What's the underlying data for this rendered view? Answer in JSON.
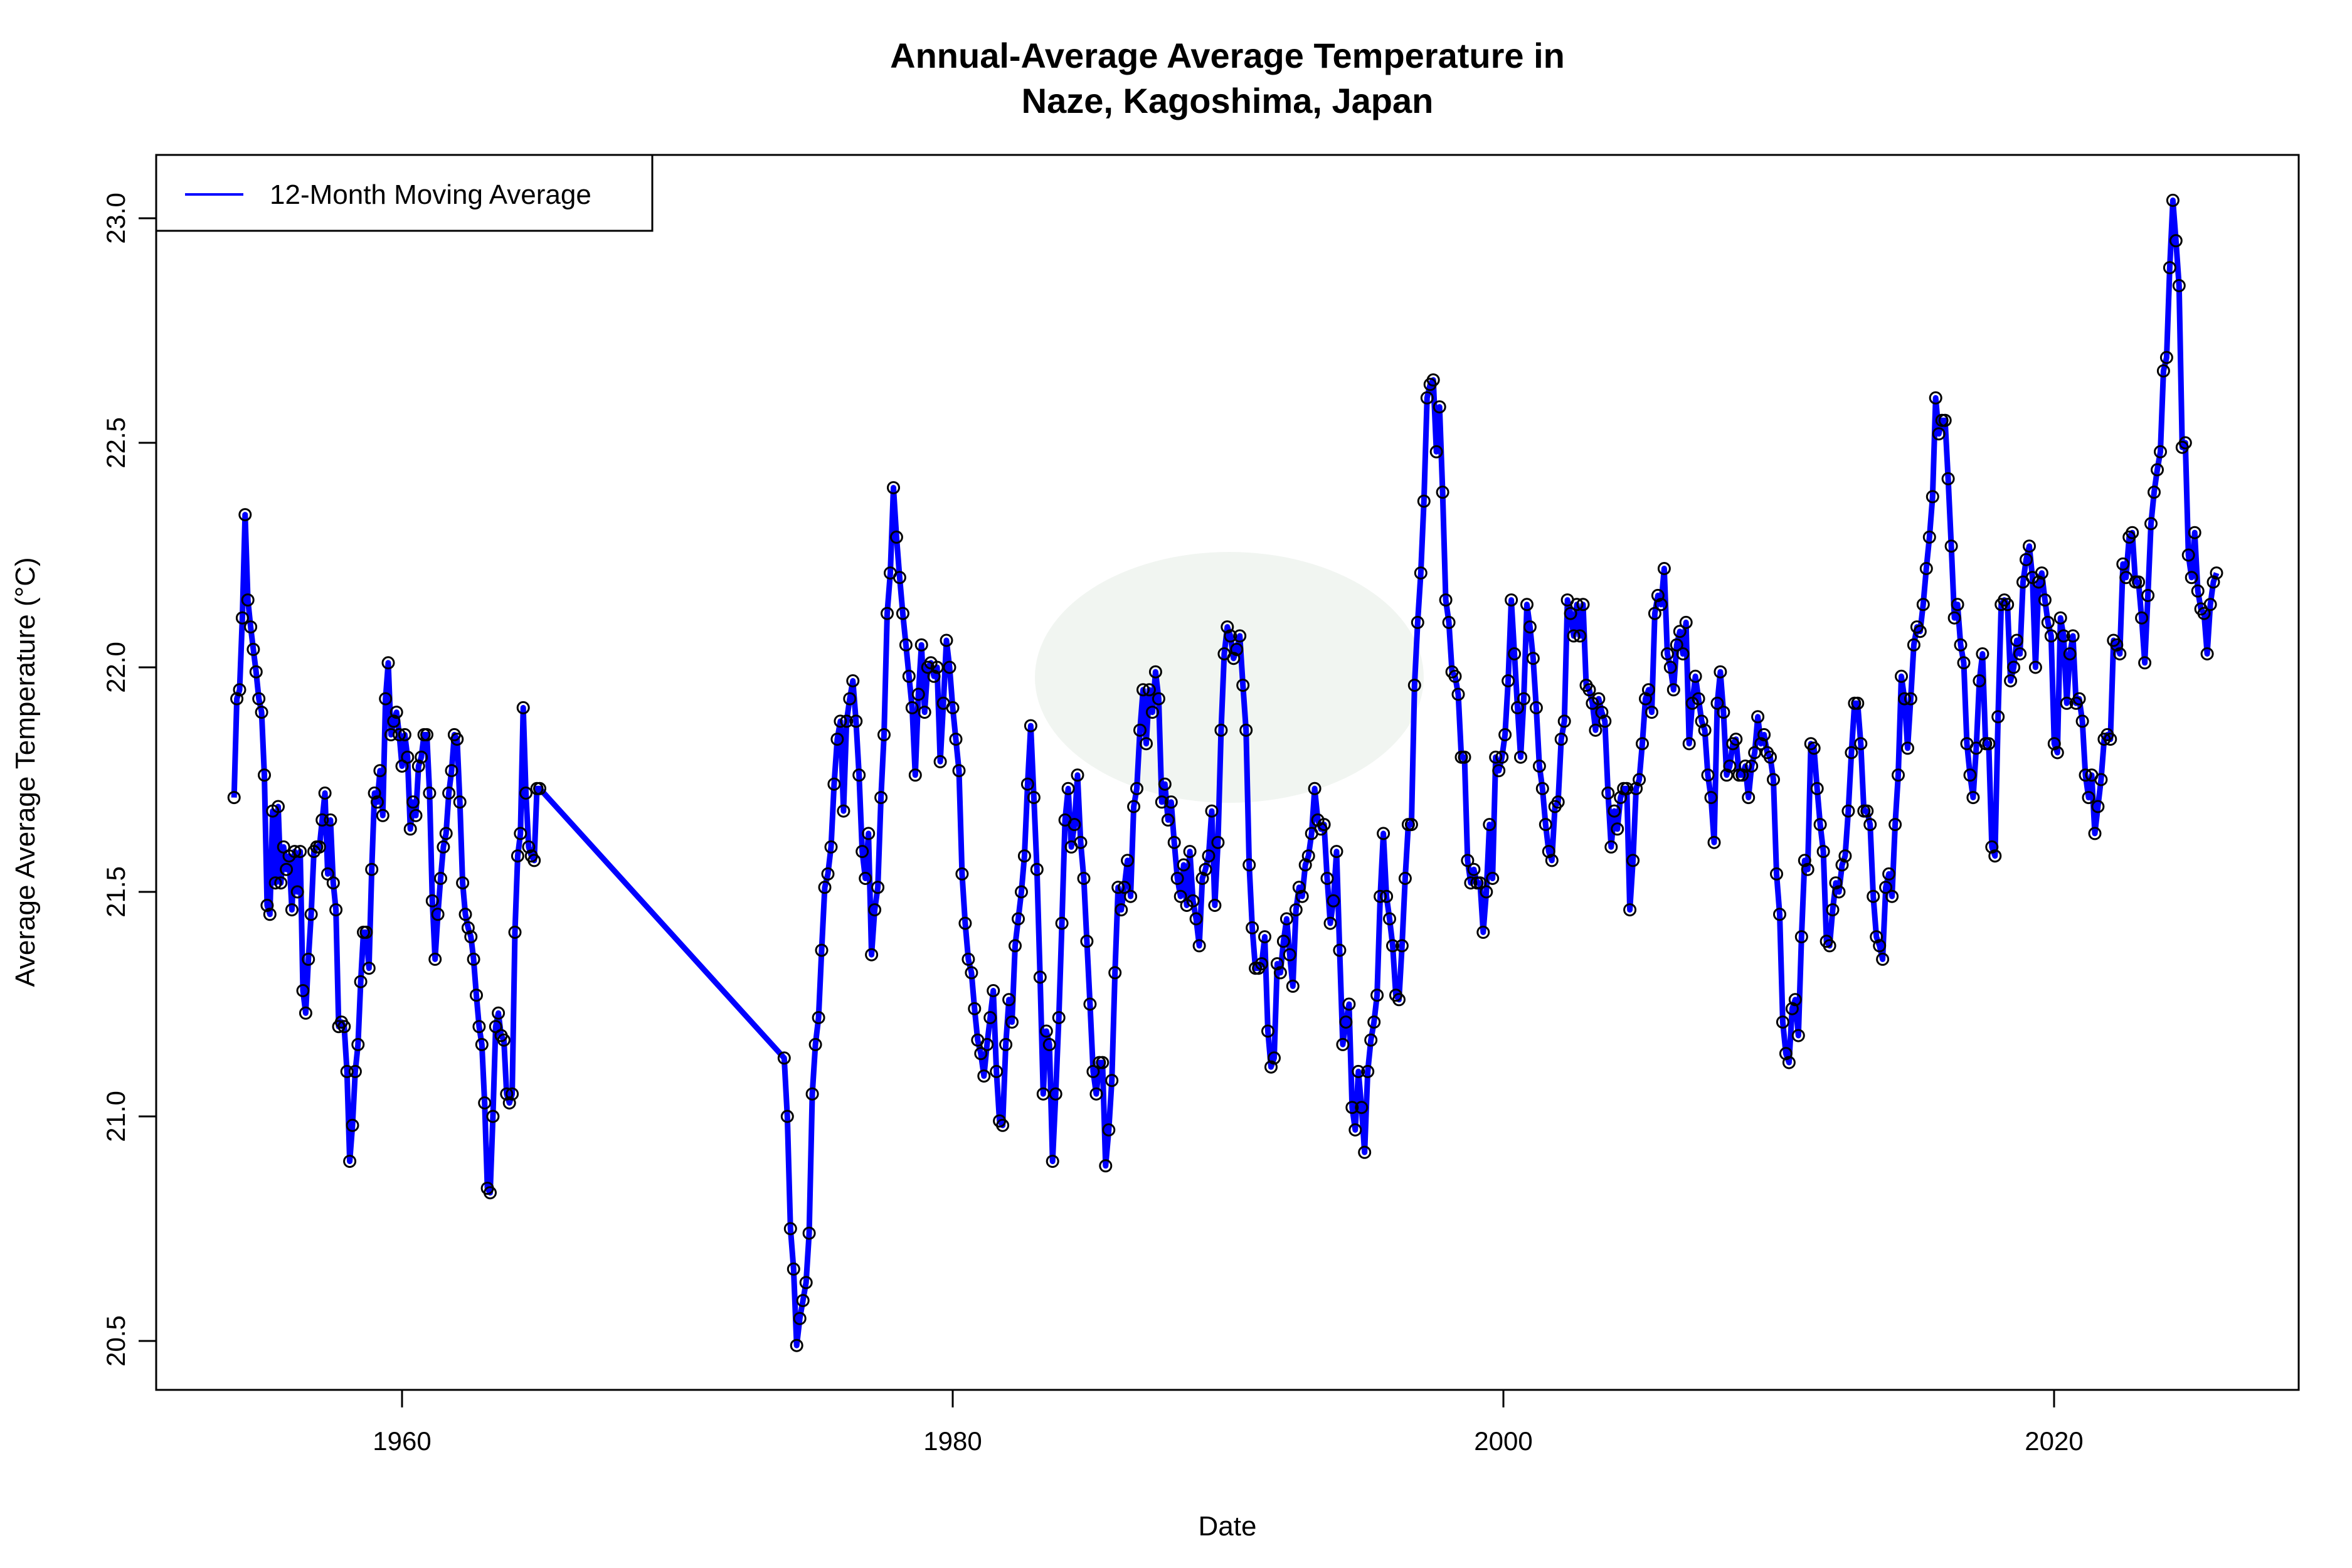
{
  "chart_data": {
    "type": "line",
    "title": [
      "Annual-Average Average Temperature in",
      "Naze, Kagoshima, Japan"
    ],
    "xlabel": "Date",
    "ylabel": "Average Average Temperature (°C)",
    "xlim": [
      1951,
      2028.5
    ],
    "ylim": [
      20.45,
      23.15
    ],
    "xticks": [
      1960,
      1980,
      2000,
      2020
    ],
    "yticks": [
      20.5,
      21.0,
      21.5,
      22.0,
      22.5,
      23.0
    ],
    "ytick_labels": [
      "20.5",
      "21.0",
      "21.5",
      "22.0",
      "22.5",
      "23.0"
    ],
    "grid": false,
    "legend": {
      "placement": "top-left",
      "entries": [
        {
          "label": "12-Month Moving Average",
          "color": "#0000ff"
        }
      ]
    },
    "colors": {
      "line": "#0000ff",
      "points": "#000000"
    },
    "series": [
      {
        "name": "12-Month Moving Average",
        "segments": [
          {
            "x_start": 1953.9,
            "x_end": 1965.0,
            "values": [
              21.71,
              21.93,
              21.95,
              22.11,
              22.34,
              22.15,
              22.09,
              22.04,
              21.99,
              21.93,
              21.9,
              21.76,
              21.47,
              21.45,
              21.68,
              21.52,
              21.69,
              21.52,
              21.6,
              21.55,
              21.58,
              21.46,
              21.59,
              21.5,
              21.59,
              21.28,
              21.23,
              21.35,
              21.45,
              21.59,
              21.6,
              21.6,
              21.66,
              21.72,
              21.54,
              21.66,
              21.52,
              21.46,
              21.2,
              21.21,
              21.2,
              21.1,
              20.9,
              20.98,
              21.1,
              21.16,
              21.3,
              21.41,
              21.41,
              21.33,
              21.55,
              21.72,
              21.7,
              21.77,
              21.67,
              21.93,
              22.01,
              21.85,
              21.88,
              21.9,
              21.85,
              21.78,
              21.85,
              21.8,
              21.64,
              21.7,
              21.67,
              21.78,
              21.8,
              21.85,
              21.85,
              21.72,
              21.48,
              21.35,
              21.45,
              21.53,
              21.6,
              21.63,
              21.72,
              21.77,
              21.85,
              21.84,
              21.7,
              21.52,
              21.45,
              21.42,
              21.4,
              21.35,
              21.27,
              21.2,
              21.16,
              21.03,
              20.84,
              20.83,
              21.0,
              21.2,
              21.23,
              21.18,
              21.17,
              21.05,
              21.03,
              21.05,
              21.41,
              21.58,
              21.63,
              21.91,
              21.72,
              21.6,
              21.58,
              21.57,
              21.73,
              21.73
            ]
          },
          {
            "x_start": 1973.88,
            "x_end": 2025.9,
            "values": [
              21.13,
              21.0,
              20.75,
              20.66,
              20.49,
              20.55,
              20.59,
              20.63,
              20.74,
              21.05,
              21.16,
              21.22,
              21.37,
              21.51,
              21.54,
              21.6,
              21.74,
              21.84,
              21.88,
              21.68,
              21.88,
              21.93,
              21.97,
              21.88,
              21.76,
              21.59,
              21.53,
              21.63,
              21.36,
              21.46,
              21.51,
              21.71,
              21.85,
              22.12,
              22.21,
              22.4,
              22.29,
              22.2,
              22.12,
              22.05,
              21.98,
              21.91,
              21.76,
              21.94,
              22.05,
              21.9,
              22.0,
              22.01,
              21.98,
              22.0,
              21.79,
              21.92,
              22.06,
              22.0,
              21.91,
              21.84,
              21.77,
              21.54,
              21.43,
              21.35,
              21.32,
              21.24,
              21.17,
              21.14,
              21.09,
              21.16,
              21.22,
              21.28,
              21.1,
              20.99,
              20.98,
              21.16,
              21.26,
              21.21,
              21.38,
              21.44,
              21.5,
              21.58,
              21.74,
              21.87,
              21.71,
              21.55,
              21.31,
              21.05,
              21.19,
              21.16,
              20.9,
              21.05,
              21.22,
              21.43,
              21.66,
              21.73,
              21.6,
              21.65,
              21.76,
              21.61,
              21.53,
              21.39,
              21.25,
              21.1,
              21.05,
              21.12,
              21.12,
              20.89,
              20.97,
              21.08,
              21.32,
              21.51,
              21.46,
              21.51,
              21.57,
              21.49,
              21.69,
              21.73,
              21.86,
              21.95,
              21.83,
              21.95,
              21.9,
              21.99,
              21.93,
              21.7,
              21.74,
              21.66,
              21.7,
              21.61,
              21.53,
              21.49,
              21.56,
              21.47,
              21.59,
              21.48,
              21.44,
              21.38,
              21.53,
              21.55,
              21.58,
              21.68,
              21.47,
              21.61,
              21.86,
              22.03,
              22.09,
              22.07,
              22.02,
              22.04,
              22.07,
              21.96,
              21.86,
              21.56,
              21.42,
              21.33,
              21.33,
              21.34,
              21.4,
              21.19,
              21.11,
              21.13,
              21.34,
              21.32,
              21.39,
              21.44,
              21.36,
              21.29,
              21.46,
              21.51,
              21.49,
              21.56,
              21.58,
              21.63,
              21.73,
              21.66,
              21.64,
              21.65,
              21.53,
              21.43,
              21.48,
              21.59,
              21.37,
              21.16,
              21.21,
              21.25,
              21.02,
              20.97,
              21.1,
              21.02,
              20.92,
              21.1,
              21.17,
              21.21,
              21.27,
              21.49,
              21.63,
              21.49,
              21.44,
              21.38,
              21.27,
              21.26,
              21.38,
              21.53,
              21.65,
              21.65,
              21.96,
              22.1,
              22.21,
              22.37,
              22.6,
              22.63,
              22.64,
              22.48,
              22.58,
              22.39,
              22.15,
              22.1,
              21.99,
              21.98,
              21.94,
              21.8,
              21.8,
              21.57,
              21.52,
              21.55,
              21.52,
              21.52,
              21.41,
              21.5,
              21.65,
              21.53,
              21.8,
              21.77,
              21.8,
              21.85,
              21.97,
              22.15,
              22.03,
              21.91,
              21.8,
              21.93,
              22.14,
              22.09,
              22.02,
              21.91,
              21.78,
              21.73,
              21.65,
              21.59,
              21.57,
              21.69,
              21.7,
              21.84,
              21.88,
              22.15,
              22.12,
              22.07,
              22.14,
              22.07,
              22.14,
              21.96,
              21.95,
              21.92,
              21.86,
              21.93,
              21.9,
              21.88,
              21.72,
              21.6,
              21.68,
              21.64,
              21.71,
              21.73,
              21.73,
              21.46,
              21.57,
              21.73,
              21.75,
              21.83,
              21.93,
              21.95,
              21.9,
              22.12,
              22.16,
              22.14,
              22.22,
              22.03,
              22.0,
              21.95,
              22.05,
              22.08,
              22.03,
              22.1,
              21.83,
              21.92,
              21.98,
              21.93,
              21.88,
              21.86,
              21.76,
              21.71,
              21.61,
              21.92,
              21.99,
              21.9,
              21.76,
              21.78,
              21.83,
              21.84,
              21.76,
              21.76,
              21.78,
              21.71,
              21.78,
              21.81,
              21.89,
              21.83,
              21.85,
              21.81,
              21.8,
              21.75,
              21.54,
              21.45,
              21.21,
              21.14,
              21.12,
              21.24,
              21.26,
              21.18,
              21.4,
              21.57,
              21.55,
              21.83,
              21.82,
              21.73,
              21.65,
              21.59,
              21.39,
              21.38,
              21.46,
              21.52,
              21.5,
              21.56,
              21.58,
              21.68,
              21.81,
              21.92,
              21.92,
              21.83,
              21.68,
              21.68,
              21.65,
              21.49,
              21.4,
              21.38,
              21.35,
              21.51,
              21.54,
              21.49,
              21.65,
              21.76,
              21.98,
              21.93,
              21.82,
              21.93,
              22.05,
              22.09,
              22.08,
              22.14,
              22.22,
              22.29,
              22.38,
              22.6,
              22.52,
              22.55,
              22.55,
              22.42,
              22.27,
              22.11,
              22.14,
              22.05,
              22.01,
              21.83,
              21.76,
              21.71,
              21.82,
              21.97,
              22.03,
              21.83,
              21.83,
              21.6,
              21.58,
              21.89,
              22.14,
              22.15,
              22.14,
              21.97,
              22.0,
              22.06,
              22.03,
              22.19,
              22.24,
              22.27,
              22.2,
              22.0,
              22.19,
              22.21,
              22.15,
              22.1,
              22.07,
              21.83,
              21.81,
              22.11,
              22.07,
              21.92,
              22.03,
              22.07,
              21.92,
              21.93,
              21.88,
              21.76,
              21.71,
              21.76,
              21.63,
              21.69,
              21.75,
              21.84,
              21.85,
              21.84,
              22.06,
              22.05,
              22.03,
              22.23,
              22.2,
              22.29,
              22.3,
              22.19,
              22.19,
              22.11,
              22.01,
              22.16,
              22.32,
              22.39,
              22.44,
              22.48,
              22.66,
              22.69,
              22.89,
              23.04,
              22.95,
              22.85,
              22.49,
              22.5,
              22.25,
              22.2,
              22.3,
              22.17,
              22.13,
              22.12,
              22.03,
              22.14,
              22.19,
              22.21
            ]
          }
        ]
      }
    ]
  }
}
